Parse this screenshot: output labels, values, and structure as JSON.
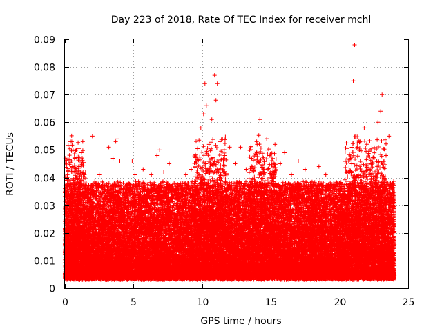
{
  "chart_data": {
    "type": "scatter",
    "title": "Day 223 of 2018, Rate Of TEC Index for receiver mchl",
    "xlabel": "GPS time / hours",
    "ylabel": "ROTI / TECUs",
    "xlim": [
      0,
      25
    ],
    "ylim": [
      0,
      0.09
    ],
    "x_ticks": [
      0,
      5,
      10,
      15,
      20,
      25
    ],
    "x_tick_labels": [
      "0",
      "5",
      "10",
      "15",
      "20",
      "25"
    ],
    "y_ticks": [
      0,
      0.01,
      0.02,
      0.03,
      0.04,
      0.05,
      0.06,
      0.07,
      0.08,
      0.09
    ],
    "y_tick_labels": [
      "0",
      "0.01",
      "0.02",
      "0.03",
      "0.04",
      "0.05",
      "0.06",
      "0.07",
      "0.08",
      "0.09"
    ],
    "grid": true,
    "marker": "+",
    "marker_color": "#ff0000",
    "series": [
      {
        "points": [
          [
            0.05,
            0.019
          ],
          [
            0.1,
            0.012
          ],
          [
            0.2,
            0.025
          ],
          [
            0.3,
            0.031
          ],
          [
            0.4,
            0.053
          ],
          [
            0.5,
            0.053
          ],
          [
            0.55,
            0.044
          ],
          [
            0.6,
            0.038
          ],
          [
            0.7,
            0.047
          ],
          [
            0.8,
            0.028
          ],
          [
            0.9,
            0.021
          ],
          [
            1.0,
            0.035
          ],
          [
            1.2,
            0.049
          ],
          [
            1.3,
            0.053
          ],
          [
            1.5,
            0.042
          ],
          [
            1.7,
            0.037
          ],
          [
            1.9,
            0.028
          ],
          [
            2.0,
            0.055
          ],
          [
            2.2,
            0.033
          ],
          [
            2.5,
            0.041
          ],
          [
            2.8,
            0.031
          ],
          [
            3.0,
            0.026
          ],
          [
            3.2,
            0.051
          ],
          [
            3.5,
            0.047
          ],
          [
            3.7,
            0.053
          ],
          [
            3.8,
            0.054
          ],
          [
            4.0,
            0.046
          ],
          [
            4.3,
            0.031
          ],
          [
            4.6,
            0.037
          ],
          [
            4.9,
            0.046
          ],
          [
            5.1,
            0.041
          ],
          [
            5.4,
            0.038
          ],
          [
            5.7,
            0.043
          ],
          [
            6.0,
            0.035
          ],
          [
            6.3,
            0.041
          ],
          [
            6.7,
            0.048
          ],
          [
            6.9,
            0.05
          ],
          [
            7.2,
            0.042
          ],
          [
            7.6,
            0.045
          ],
          [
            8.0,
            0.035
          ],
          [
            8.4,
            0.037
          ],
          [
            8.8,
            0.041
          ],
          [
            9.2,
            0.043
          ],
          [
            9.6,
            0.046
          ],
          [
            9.9,
            0.058
          ],
          [
            10.1,
            0.063
          ],
          [
            10.2,
            0.074
          ],
          [
            10.3,
            0.066
          ],
          [
            10.5,
            0.052
          ],
          [
            10.7,
            0.061
          ],
          [
            10.9,
            0.077
          ],
          [
            11.0,
            0.068
          ],
          [
            11.1,
            0.074
          ],
          [
            11.3,
            0.053
          ],
          [
            11.6,
            0.046
          ],
          [
            12.0,
            0.051
          ],
          [
            12.4,
            0.045
          ],
          [
            12.8,
            0.051
          ],
          [
            13.2,
            0.043
          ],
          [
            13.6,
            0.047
          ],
          [
            14.0,
            0.052
          ],
          [
            14.2,
            0.061
          ],
          [
            14.5,
            0.046
          ],
          [
            14.9,
            0.048
          ],
          [
            15.3,
            0.052
          ],
          [
            15.7,
            0.045
          ],
          [
            16.0,
            0.049
          ],
          [
            16.5,
            0.041
          ],
          [
            17.0,
            0.046
          ],
          [
            17.5,
            0.043
          ],
          [
            18.0,
            0.037
          ],
          [
            18.5,
            0.044
          ],
          [
            19.0,
            0.041
          ],
          [
            19.5,
            0.036
          ],
          [
            20.0,
            0.038
          ],
          [
            20.4,
            0.036
          ],
          [
            20.8,
            0.047
          ],
          [
            21.0,
            0.075
          ],
          [
            21.1,
            0.088
          ],
          [
            21.3,
            0.051
          ],
          [
            21.5,
            0.053
          ],
          [
            21.8,
            0.058
          ],
          [
            22.0,
            0.042
          ],
          [
            22.3,
            0.045
          ],
          [
            22.6,
            0.039
          ],
          [
            22.8,
            0.06
          ],
          [
            23.0,
            0.064
          ],
          [
            23.1,
            0.07
          ],
          [
            23.3,
            0.046
          ],
          [
            23.6,
            0.055
          ],
          [
            23.9,
            0.038
          ]
        ]
      }
    ],
    "background_cloud": {
      "x_range": [
        0,
        24
      ],
      "base_min": 0.004,
      "base_max": 0.038,
      "density_per_hour": 1300,
      "enhanced_windows": [
        [
          0,
          1.5
        ],
        [
          9.4,
          11.8
        ],
        [
          13.4,
          15.4
        ],
        [
          20.4,
          23.4
        ]
      ]
    }
  }
}
